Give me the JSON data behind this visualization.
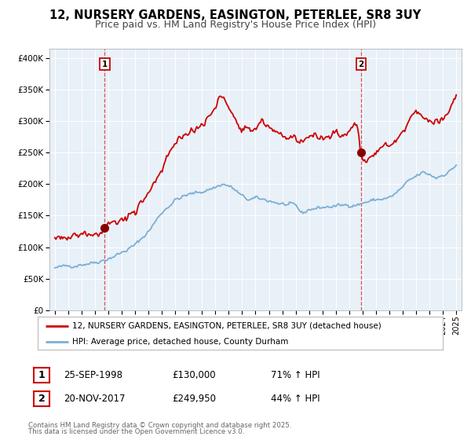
{
  "title_line1": "12, NURSERY GARDENS, EASINGTON, PETERLEE, SR8 3UY",
  "title_line2": "Price paid vs. HM Land Registry's House Price Index (HPI)",
  "legend_line1": "12, NURSERY GARDENS, EASINGTON, PETERLEE, SR8 3UY (detached house)",
  "legend_line2": "HPI: Average price, detached house, County Durham",
  "sale1_date": "25-SEP-1998",
  "sale1_price": 130000,
  "sale1_label": "71% ↑ HPI",
  "sale2_date": "20-NOV-2017",
  "sale2_price": 249950,
  "sale2_label": "44% ↑ HPI",
  "footer": "Contains HM Land Registry data © Crown copyright and database right 2025.\nThis data is licensed under the Open Government Licence v3.0.",
  "red_color": "#cc0000",
  "blue_color": "#7bafd4",
  "fig_bg": "#ffffff",
  "plot_bg": "#e8f0f8",
  "sale1_x": 1998.73,
  "sale2_x": 2017.89,
  "yticks": [
    0,
    50000,
    100000,
    150000,
    200000,
    250000,
    300000,
    350000,
    400000
  ],
  "hpi_waypoints": [
    [
      1995.0,
      67000
    ],
    [
      1996.0,
      70000
    ],
    [
      1997.0,
      73000
    ],
    [
      1998.0,
      76000
    ],
    [
      1999.0,
      82000
    ],
    [
      2000.0,
      91000
    ],
    [
      2001.0,
      103000
    ],
    [
      2002.0,
      125000
    ],
    [
      2003.0,
      155000
    ],
    [
      2004.0,
      175000
    ],
    [
      2005.0,
      183000
    ],
    [
      2006.0,
      188000
    ],
    [
      2007.0,
      195000
    ],
    [
      2007.5,
      200000
    ],
    [
      2008.0,
      197000
    ],
    [
      2008.5,
      190000
    ],
    [
      2009.0,
      180000
    ],
    [
      2009.5,
      175000
    ],
    [
      2010.0,
      177000
    ],
    [
      2011.0,
      174000
    ],
    [
      2012.0,
      168000
    ],
    [
      2013.0,
      165000
    ],
    [
      2013.5,
      153000
    ],
    [
      2014.0,
      160000
    ],
    [
      2015.0,
      163000
    ],
    [
      2016.0,
      165000
    ],
    [
      2017.0,
      167000
    ],
    [
      2017.89,
      168000
    ],
    [
      2018.0,
      170000
    ],
    [
      2019.0,
      175000
    ],
    [
      2020.0,
      178000
    ],
    [
      2020.5,
      185000
    ],
    [
      2021.0,
      195000
    ],
    [
      2021.5,
      205000
    ],
    [
      2022.0,
      212000
    ],
    [
      2022.5,
      218000
    ],
    [
      2023.0,
      215000
    ],
    [
      2023.5,
      210000
    ],
    [
      2024.0,
      215000
    ],
    [
      2024.5,
      220000
    ],
    [
      2025.0,
      230000
    ]
  ],
  "red_waypoints": [
    [
      1995.0,
      115000
    ],
    [
      1995.5,
      112000
    ],
    [
      1996.0,
      116000
    ],
    [
      1996.5,
      120000
    ],
    [
      1997.0,
      122000
    ],
    [
      1997.5,
      125000
    ],
    [
      1998.0,
      123000
    ],
    [
      1998.5,
      126000
    ],
    [
      1998.73,
      130000
    ],
    [
      1999.0,
      136000
    ],
    [
      1999.5,
      140000
    ],
    [
      2000.0,
      145000
    ],
    [
      2001.0,
      153000
    ],
    [
      2002.0,
      180000
    ],
    [
      2002.5,
      205000
    ],
    [
      2003.0,
      225000
    ],
    [
      2003.5,
      245000
    ],
    [
      2004.0,
      263000
    ],
    [
      2004.5,
      272000
    ],
    [
      2005.0,
      278000
    ],
    [
      2005.5,
      285000
    ],
    [
      2006.0,
      295000
    ],
    [
      2006.5,
      305000
    ],
    [
      2007.0,
      318000
    ],
    [
      2007.3,
      340000
    ],
    [
      2007.7,
      330000
    ],
    [
      2008.0,
      320000
    ],
    [
      2008.3,
      310000
    ],
    [
      2008.7,
      295000
    ],
    [
      2009.0,
      280000
    ],
    [
      2009.5,
      285000
    ],
    [
      2010.0,
      292000
    ],
    [
      2010.5,
      300000
    ],
    [
      2010.7,
      295000
    ],
    [
      2011.0,
      290000
    ],
    [
      2011.5,
      285000
    ],
    [
      2012.0,
      280000
    ],
    [
      2012.5,
      278000
    ],
    [
      2013.0,
      275000
    ],
    [
      2013.3,
      260000
    ],
    [
      2013.7,
      270000
    ],
    [
      2014.0,
      275000
    ],
    [
      2014.5,
      278000
    ],
    [
      2015.0,
      272000
    ],
    [
      2015.5,
      275000
    ],
    [
      2016.0,
      278000
    ],
    [
      2016.5,
      280000
    ],
    [
      2017.0,
      283000
    ],
    [
      2017.3,
      295000
    ],
    [
      2017.6,
      298000
    ],
    [
      2017.89,
      249950
    ],
    [
      2018.0,
      248000
    ],
    [
      2018.3,
      240000
    ],
    [
      2018.6,
      245000
    ],
    [
      2019.0,
      250000
    ],
    [
      2019.5,
      258000
    ],
    [
      2020.0,
      262000
    ],
    [
      2020.5,
      268000
    ],
    [
      2021.0,
      278000
    ],
    [
      2021.3,
      290000
    ],
    [
      2021.5,
      298000
    ],
    [
      2021.7,
      305000
    ],
    [
      2022.0,
      310000
    ],
    [
      2022.3,
      308000
    ],
    [
      2022.7,
      302000
    ],
    [
      2023.0,
      300000
    ],
    [
      2023.3,
      295000
    ],
    [
      2023.7,
      300000
    ],
    [
      2024.0,
      305000
    ],
    [
      2024.5,
      315000
    ],
    [
      2025.0,
      335000
    ]
  ]
}
